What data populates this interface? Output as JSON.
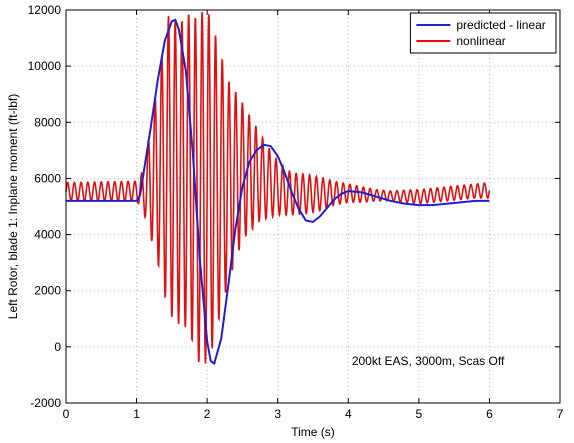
{
  "chart_data": {
    "type": "line",
    "xlabel": "Time (s)",
    "ylabel": "Left Rotor, blade 1: Inplane moment (ft-lbf)",
    "xlim": [
      0,
      7
    ],
    "ylim": [
      -2000,
      12000
    ],
    "xticks": [
      0,
      1,
      2,
      3,
      4,
      5,
      6,
      7
    ],
    "yticks": [
      -2000,
      0,
      2000,
      4000,
      6000,
      8000,
      10000,
      12000
    ],
    "xtick_labels": [
      "0",
      "1",
      "2",
      "3",
      "4",
      "5",
      "6",
      "7"
    ],
    "ytick_labels": [
      "-2000",
      "0",
      "2000",
      "4000",
      "6000",
      "8000",
      "10000",
      "12000"
    ],
    "grid": true,
    "legend_position": "top-right",
    "annotation": "200kt EAS, 3000m, Scas Off",
    "series": [
      {
        "name": "predicted - linear",
        "color": "#1f1fd0",
        "x": [
          0,
          0.5,
          1.0,
          1.05,
          1.1,
          1.2,
          1.3,
          1.4,
          1.5,
          1.55,
          1.6,
          1.7,
          1.8,
          1.9,
          2.0,
          2.05,
          2.1,
          2.2,
          2.3,
          2.4,
          2.5,
          2.6,
          2.7,
          2.8,
          2.9,
          3.0,
          3.1,
          3.2,
          3.3,
          3.4,
          3.5,
          3.6,
          3.7,
          3.8,
          3.9,
          4.0,
          4.2,
          4.4,
          4.6,
          4.8,
          5.0,
          5.2,
          5.4,
          5.6,
          5.8,
          6.0
        ],
        "y": [
          5200,
          5200,
          5200,
          5400,
          6200,
          7800,
          9500,
          10900,
          11600,
          11650,
          11300,
          9800,
          6800,
          3000,
          200,
          -500,
          -600,
          300,
          2200,
          4200,
          5700,
          6600,
          7000,
          7200,
          7150,
          6800,
          6200,
          5500,
          4900,
          4500,
          4450,
          4650,
          4950,
          5250,
          5450,
          5550,
          5500,
          5350,
          5200,
          5100,
          5050,
          5050,
          5100,
          5150,
          5200,
          5200
        ]
      },
      {
        "name": "nonlinear",
        "color": "#e01010",
        "x": [
          0,
          1.0,
          1.1,
          1.3,
          1.45,
          1.6,
          1.75,
          1.85,
          1.95,
          2.05,
          2.15,
          2.3,
          2.5,
          2.75,
          3.0,
          3.2,
          3.4,
          3.6,
          3.8,
          4.0,
          4.2,
          4.4,
          4.6,
          4.8,
          5.0,
          5.2,
          5.4,
          5.6,
          5.8,
          6.0
        ],
        "upper": [
          5850,
          5900,
          6300,
          9500,
          11800,
          11500,
          11900,
          11700,
          12000,
          11800,
          10800,
          9500,
          8700,
          7600,
          6600,
          6200,
          6150,
          6050,
          5900,
          5800,
          5700,
          5600,
          5550,
          5580,
          5600,
          5650,
          5700,
          5750,
          5800,
          5850
        ],
        "lower": [
          5200,
          5200,
          4800,
          3000,
          1200,
          800,
          600,
          -500,
          -700,
          -300,
          800,
          2300,
          3800,
          4500,
          4700,
          4700,
          4750,
          4850,
          5050,
          5150,
          5150,
          5200,
          5200,
          5150,
          5100,
          5150,
          5200,
          5250,
          5300,
          5300
        ],
        "oscillation_frequency_hz": 10.5
      }
    ]
  }
}
